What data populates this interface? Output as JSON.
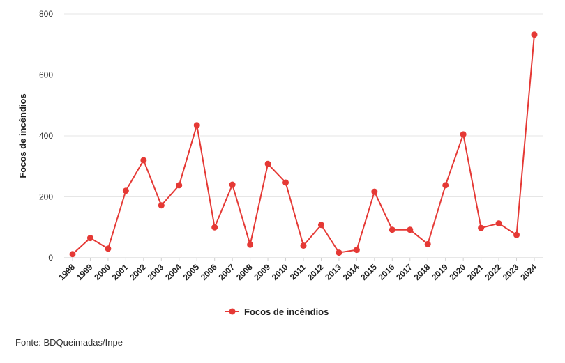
{
  "chart_data": {
    "type": "line",
    "ylabel": "Focos de incêndios",
    "xlabel": "",
    "ylim": [
      0,
      800
    ],
    "yticks": [
      0,
      200,
      400,
      600,
      800
    ],
    "grid": true,
    "legend_position": "bottom-center",
    "x": [
      "1998",
      "1999",
      "2000",
      "2001",
      "2002",
      "2003",
      "2004",
      "2005",
      "2006",
      "2007",
      "2008",
      "2009",
      "2010",
      "2011",
      "2012",
      "2013",
      "2014",
      "2015",
      "2016",
      "2017",
      "2018",
      "2019",
      "2020",
      "2021",
      "2022",
      "2023",
      "2024"
    ],
    "series": [
      {
        "name": "Focos de incêndios",
        "color": "#e53935",
        "values": [
          12,
          65,
          30,
          220,
          320,
          172,
          238,
          435,
          100,
          240,
          43,
          308,
          247,
          40,
          108,
          17,
          26,
          217,
          92,
          92,
          45,
          238,
          405,
          98,
          113,
          75,
          732
        ]
      }
    ]
  },
  "source": "Fonte: BDQueimadas/Inpe"
}
